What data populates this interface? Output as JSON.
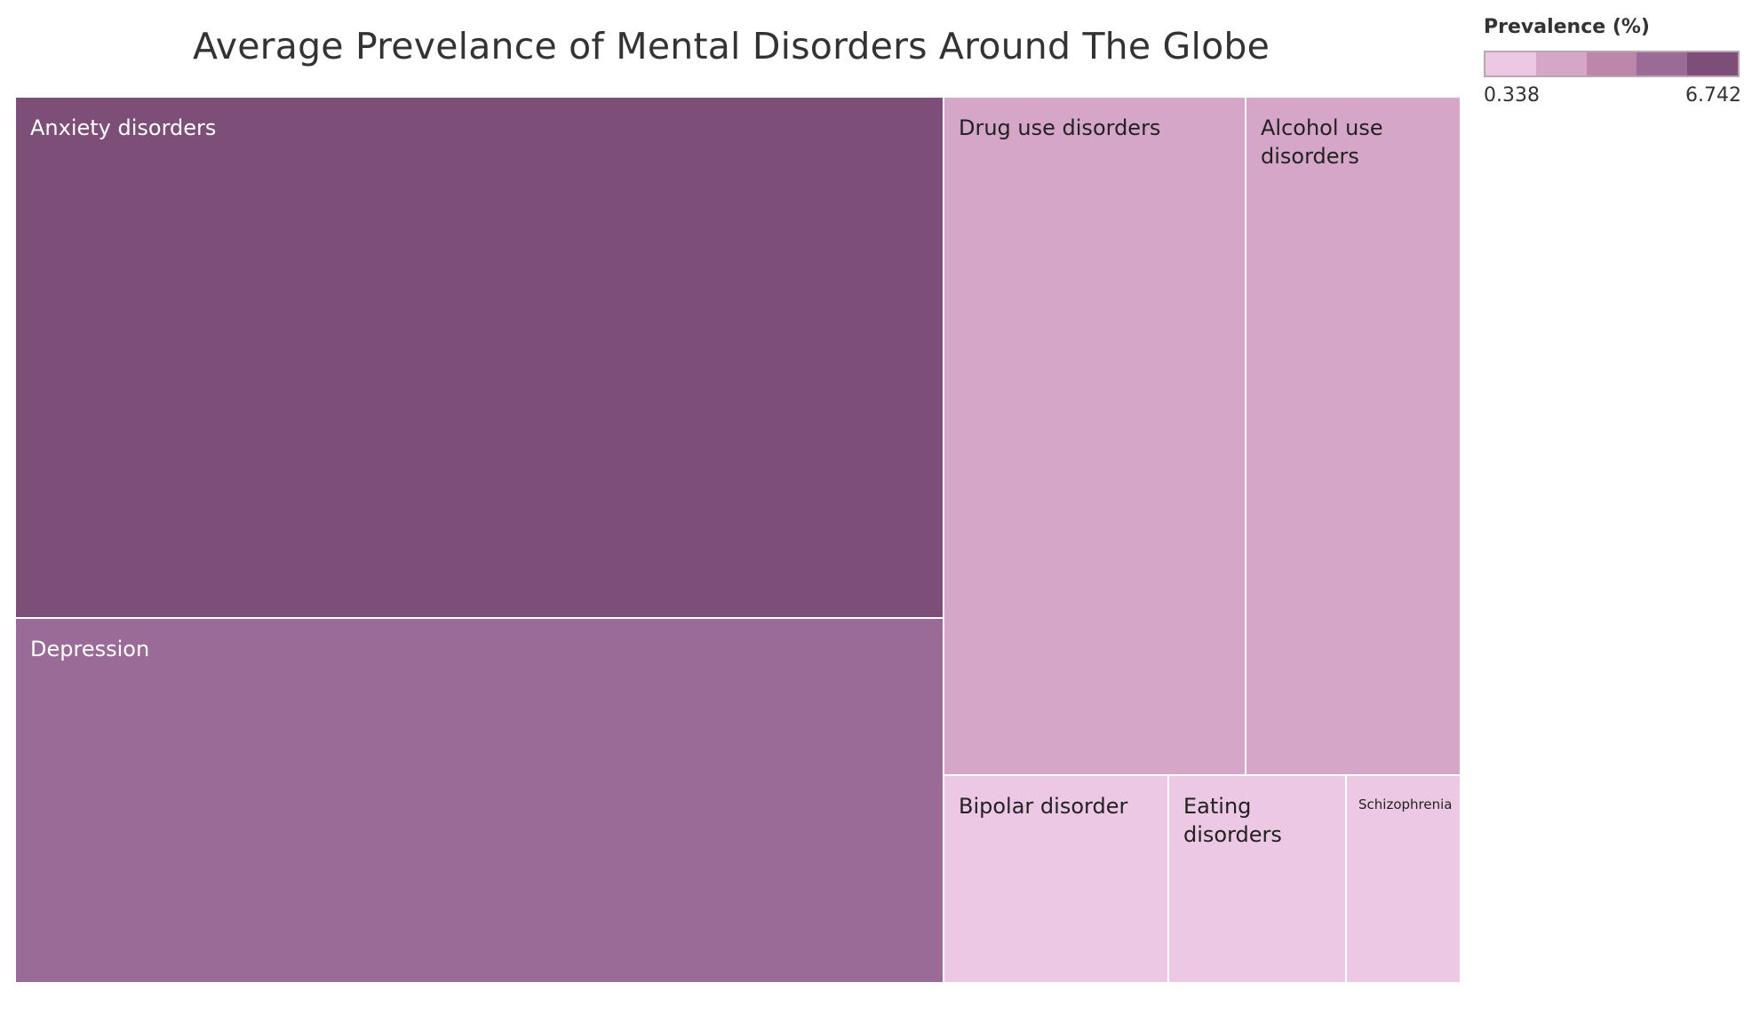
{
  "title": "Average Prevelance of Mental Disorders Around The Globe",
  "legend": {
    "title": "Prevalence (%)",
    "min_label": "0.338",
    "max_label": "6.742",
    "steps": [
      "#ecc8e4",
      "#d6a6c8",
      "#bd87ac",
      "#9a6b96",
      "#7d4e77"
    ]
  },
  "chart_data": {
    "type": "treemap",
    "title": "Average Prevelance of Mental Disorders Around The Globe",
    "color_legend": "Prevalence (%)",
    "color_range": [
      0.338,
      6.742
    ],
    "items": [
      {
        "name": "Anxiety disorders",
        "value": 6.742,
        "color": "#7d4e77",
        "text_color": "#ffffff"
      },
      {
        "name": "Depression",
        "value": 4.3,
        "color": "#9a6b96",
        "text_color": "#ffffff"
      },
      {
        "name": "Drug use disorders",
        "value": 2.6,
        "color": "#d6a6c8",
        "text_color": "#222222"
      },
      {
        "name": "Alcohol use disorders",
        "value": 1.9,
        "color": "#d6a6c8",
        "text_color": "#222222"
      },
      {
        "name": "Bipolar disorder",
        "value": 0.62,
        "color": "#ecc8e4",
        "text_color": "#222222"
      },
      {
        "name": "Eating disorders",
        "value": 0.5,
        "color": "#ecc8e4",
        "text_color": "#222222"
      },
      {
        "name": "Schizophrenia",
        "value": 0.338,
        "color": "#ecc8e4",
        "text_color": "#222222"
      }
    ]
  }
}
